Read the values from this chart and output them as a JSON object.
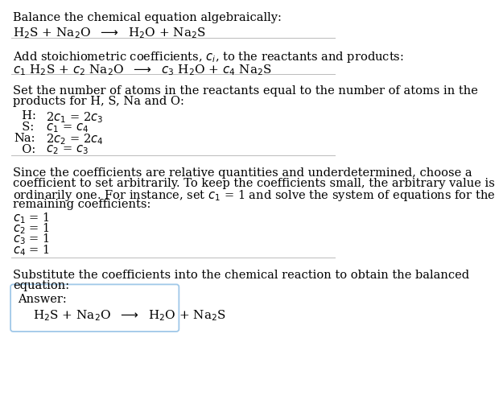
{
  "bg_color": "#ffffff",
  "text_color": "#000000",
  "box_edge_color": "#a0c8e8",
  "separator_color": "#bbbbbb",
  "font_size": 10.5,
  "font_family": "DejaVu Serif",
  "sections": {
    "s1_line1": "Balance the chemical equation algebraically:",
    "s1_eq": "H$_2$S + Na$_2$O  $\\longrightarrow$  H$_2$O + Na$_2$S",
    "s2_header": "Add stoichiometric coefficients, $c_i$, to the reactants and products:",
    "s2_eq": "$c_1$ H$_2$S + $c_2$ Na$_2$O  $\\longrightarrow$  $c_3$ H$_2$O + $c_4$ Na$_2$S",
    "s3_header1": "Set the number of atoms in the reactants equal to the number of atoms in the",
    "s3_header2": "products for H, S, Na and O:",
    "s3_eqs": [
      [
        "  H:",
        " 2$c_1$ = 2$c_3$"
      ],
      [
        "  S:",
        " $c_1$ = $c_4$"
      ],
      [
        "Na:",
        " 2$c_2$ = 2$c_4$"
      ],
      [
        "  O:",
        " $c_2$ = $c_3$"
      ]
    ],
    "s4_header1": "Since the coefficients are relative quantities and underdetermined, choose a",
    "s4_header2": "coefficient to set arbitrarily. To keep the coefficients small, the arbitrary value is",
    "s4_header3": "ordinarily one. For instance, set $c_1$ = 1 and solve the system of equations for the",
    "s4_header4": "remaining coefficients:",
    "s4_sols": [
      "$c_1$ = 1",
      "$c_2$ = 1",
      "$c_3$ = 1",
      "$c_4$ = 1"
    ],
    "s5_header1": "Substitute the coefficients into the chemical reaction to obtain the balanced",
    "s5_header2": "equation:",
    "ans_label": "Answer:",
    "ans_eq": "H$_2$S + Na$_2$O  $\\longrightarrow$  H$_2$O + Na$_2$S"
  }
}
